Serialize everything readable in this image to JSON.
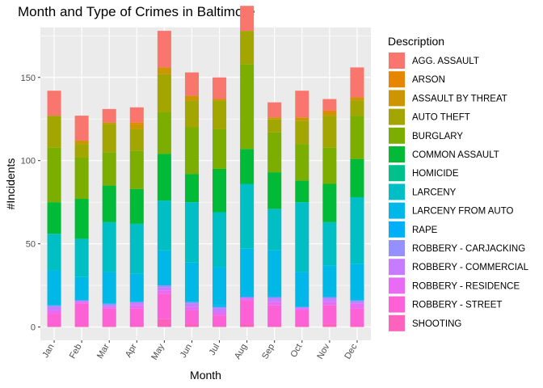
{
  "chart_data": {
    "type": "bar",
    "stacked": true,
    "title": "Month and Type of Crimes in Baltimore",
    "xlabel": "Month",
    "ylabel": "#Incidents",
    "ylim": [
      -8,
      180
    ],
    "yticks": [
      0,
      50,
      100,
      150
    ],
    "categories": [
      "Jan",
      "Feb",
      "Mar",
      "Apr",
      "May",
      "Jun",
      "Jul",
      "Aug",
      "Sep",
      "Oct",
      "Nov",
      "Dec"
    ],
    "legend_title": "Description",
    "legend_position": "right",
    "series": [
      {
        "name": "SHOOTING",
        "color": "#FF62BC",
        "values": [
          1,
          1,
          1,
          1,
          5,
          2,
          1,
          2,
          1,
          1,
          2,
          1
        ]
      },
      {
        "name": "ROBBERY - STREET",
        "color": "#FC61D5",
        "values": [
          7,
          13,
          10,
          10,
          15,
          8,
          6,
          14,
          12,
          9,
          11,
          10
        ]
      },
      {
        "name": "ROBBERY - RESIDENCE",
        "color": "#E76BF3",
        "values": [
          2,
          1,
          1,
          2,
          2,
          2,
          2,
          1,
          2,
          1,
          2,
          3
        ]
      },
      {
        "name": "ROBBERY - COMMERCIAL",
        "color": "#C77CFF",
        "values": [
          2,
          1,
          1,
          2,
          2,
          2,
          2,
          1,
          2,
          1,
          2,
          1
        ]
      },
      {
        "name": "ROBBERY - CARJACKING",
        "color": "#9590FF",
        "values": [
          1,
          0,
          1,
          0,
          1,
          1,
          1,
          0,
          1,
          0,
          1,
          1
        ]
      },
      {
        "name": "RAPE",
        "color": "#00B0F6",
        "values": [
          0,
          0,
          0,
          0,
          0,
          0,
          1,
          0,
          0,
          0,
          0,
          0
        ]
      },
      {
        "name": "LARCENY FROM AUTO",
        "color": "#00B8E7",
        "values": [
          21,
          14,
          19,
          17,
          21,
          24,
          23,
          29,
          28,
          21,
          19,
          22
        ]
      },
      {
        "name": "LARCENY",
        "color": "#00BFC4",
        "values": [
          22,
          23,
          30,
          30,
          30,
          36,
          33,
          39,
          25,
          42,
          26,
          40
        ]
      },
      {
        "name": "HOMICIDE",
        "color": "#00C08B",
        "values": [
          0,
          0,
          0,
          0,
          0,
          0,
          0,
          0,
          0,
          0,
          0,
          0
        ]
      },
      {
        "name": "COMMON ASSAULT",
        "color": "#00BA38",
        "values": [
          19,
          24,
          22,
          21,
          28,
          17,
          26,
          21,
          22,
          13,
          23,
          23
        ]
      },
      {
        "name": "BURGLARY",
        "color": "#7CAE00",
        "values": [
          33,
          25,
          20,
          23,
          25,
          28,
          24,
          51,
          24,
          22,
          22,
          26
        ]
      },
      {
        "name": "AUTO THEFT",
        "color": "#A3A500",
        "values": [
          19,
          8,
          17,
          13,
          23,
          16,
          17,
          20,
          8,
          14,
          19,
          9
        ]
      },
      {
        "name": "ASSAULT BY THREAT",
        "color": "#CD9600",
        "values": [
          0,
          2,
          1,
          3,
          4,
          3,
          1,
          0,
          1,
          2,
          2,
          2
        ]
      },
      {
        "name": "ARSON",
        "color": "#E58700",
        "values": [
          0,
          0,
          0,
          1,
          0,
          0,
          0,
          0,
          0,
          0,
          1,
          0
        ]
      },
      {
        "name": "AGG. ASSAULT",
        "color": "#F8766D",
        "values": [
          15,
          15,
          8,
          9,
          22,
          14,
          13,
          15,
          9,
          16,
          7,
          18
        ]
      }
    ]
  }
}
